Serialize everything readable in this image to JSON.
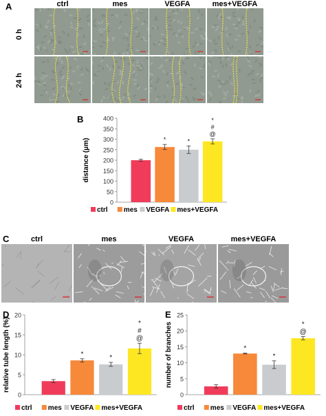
{
  "panel_a": {
    "letter": "A",
    "columns": [
      "ctrl",
      "mes",
      "VEGFA",
      "mes+VEGFA"
    ],
    "rows": [
      "0 h",
      "24 h"
    ]
  },
  "panel_c": {
    "letter": "C",
    "columns": [
      "ctrl",
      "mes",
      "VEGFA",
      "mes+VEGFA"
    ]
  },
  "chart_data": [
    {
      "panel": "B",
      "type": "bar",
      "categories": [
        "ctrl",
        "mes",
        "VEGFA",
        "mes+VEGFA"
      ],
      "values": [
        200,
        263,
        250,
        290
      ],
      "errors": [
        5,
        12,
        18,
        12
      ],
      "colors": [
        "#f03c5a",
        "#f7893a",
        "#c9cccf",
        "#fde723"
      ],
      "annotations": [
        [],
        [
          "*"
        ],
        [
          "*"
        ],
        [
          "*",
          "#",
          "@"
        ]
      ],
      "ylabel": "distance (μm)",
      "ylim": [
        0,
        400
      ],
      "yticks": [
        0,
        50,
        100,
        150,
        200,
        250,
        300,
        350,
        400
      ],
      "grid": false,
      "legend": "bottom"
    },
    {
      "panel": "D",
      "type": "bar",
      "categories": [
        "ctrl",
        "mes",
        "VEGFA",
        "mes+VEGFA"
      ],
      "values": [
        3.4,
        8.6,
        7.6,
        11.6
      ],
      "errors": [
        0.4,
        0.4,
        0.5,
        1.3
      ],
      "colors": [
        "#f03c5a",
        "#f7893a",
        "#c9cccf",
        "#fde723"
      ],
      "annotations": [
        [],
        [
          "*"
        ],
        [
          "*"
        ],
        [
          "*",
          "#",
          "@"
        ]
      ],
      "ylabel": "relative tube length (%)",
      "ylim": [
        0,
        20
      ],
      "yticks": [
        0,
        5,
        10,
        15,
        20
      ],
      "grid": false,
      "legend": "bottom"
    },
    {
      "panel": "E",
      "type": "bar",
      "categories": [
        "ctrl",
        "mes",
        "VEGFA",
        "mes+VEGFA"
      ],
      "values": [
        2.6,
        12.9,
        9.4,
        17.7
      ],
      "errors": [
        0.5,
        0.15,
        1.2,
        0.5
      ],
      "colors": [
        "#f03c5a",
        "#f7893a",
        "#c9cccf",
        "#fde723"
      ],
      "annotations": [
        [],
        [
          "*"
        ],
        [
          "*"
        ],
        [
          "*",
          "@"
        ]
      ],
      "ylabel": "number of branches",
      "ylim": [
        0,
        25
      ],
      "yticks": [
        0,
        5,
        10,
        15,
        20,
        25
      ],
      "grid": false,
      "legend": "bottom"
    }
  ]
}
